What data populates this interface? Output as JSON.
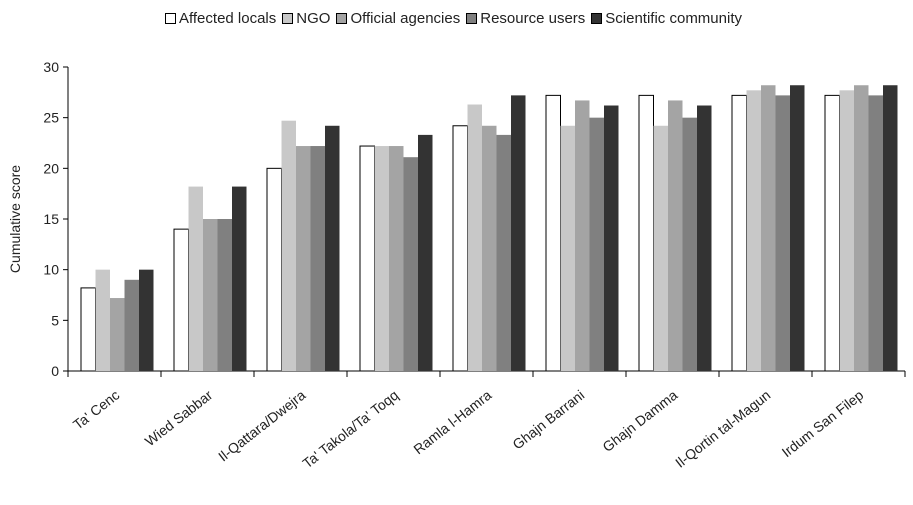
{
  "chart_data": {
    "type": "bar",
    "ylabel": "Cumulative score",
    "xlabel": "",
    "ylim": [
      0,
      30
    ],
    "yticks": [
      "0",
      "5",
      "10",
      "15",
      "20",
      "25",
      "30"
    ],
    "legend_position": "top",
    "grid": false,
    "categories": [
      "Ta' Cenc",
      "Wied Sabbar",
      "Il-Qattara/Dwejra",
      "Ta' Takola/Ta' Toqq",
      "Ramla l-Hamra",
      "Ghajn Barrani",
      "Ghajn Damma",
      "Il-Qortin tal-Magun",
      "Irdum San Filep"
    ],
    "series": [
      {
        "name": "Affected locals",
        "color": "#ffffff",
        "values": [
          8.2,
          14,
          20,
          22.2,
          24.2,
          27.2,
          27.2,
          27.2,
          27.2
        ]
      },
      {
        "name": "NGO",
        "color": "#c8c8c8",
        "values": [
          10,
          18.2,
          24.7,
          22.2,
          26.3,
          24.2,
          24.2,
          27.7,
          27.7
        ]
      },
      {
        "name": "Official agencies",
        "color": "#a4a4a4",
        "values": [
          7.2,
          15,
          22.2,
          22.2,
          24.2,
          26.7,
          26.7,
          28.2,
          28.2
        ]
      },
      {
        "name": "Resource users",
        "color": "#808080",
        "values": [
          9,
          15,
          22.2,
          21.1,
          23.3,
          25,
          25,
          27.2,
          27.2
        ]
      },
      {
        "name": "Scientific community",
        "color": "#333333",
        "values": [
          10,
          18.2,
          24.2,
          23.3,
          27.2,
          26.2,
          26.2,
          28.2,
          28.2
        ]
      }
    ]
  }
}
